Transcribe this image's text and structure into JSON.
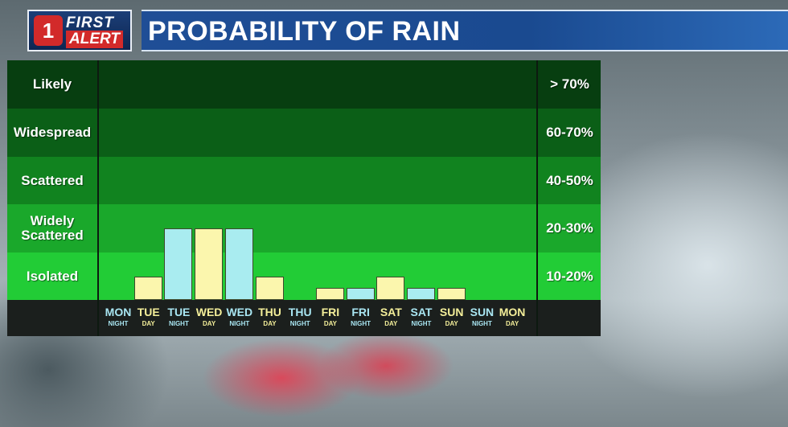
{
  "header": {
    "logo_first": "FIRST",
    "logo_alert": "ALERT",
    "logo_mark": "1",
    "title": "PROBABILITY OF RAIN"
  },
  "colors": {
    "day_bar": "#fbf6ad",
    "night_bar": "#a9ecf0",
    "day_text": "#f4ef9a",
    "night_text": "#a9e6f2",
    "band_likely": "#073e10",
    "band_widespread": "#0b5f17",
    "band_scattered": "#11831f",
    "band_widely_scattered": "#1aa82b",
    "band_isolated": "#22cc36"
  },
  "chart_data": {
    "type": "bar",
    "title": "PROBABILITY OF RAIN",
    "ylabel": "",
    "categories": [
      {
        "day": "MON",
        "part": "NIGHT"
      },
      {
        "day": "TUE",
        "part": "DAY"
      },
      {
        "day": "TUE",
        "part": "NIGHT"
      },
      {
        "day": "WED",
        "part": "DAY"
      },
      {
        "day": "WED",
        "part": "NIGHT"
      },
      {
        "day": "THU",
        "part": "DAY"
      },
      {
        "day": "THU",
        "part": "NIGHT"
      },
      {
        "day": "FRI",
        "part": "DAY"
      },
      {
        "day": "FRI",
        "part": "NIGHT"
      },
      {
        "day": "SAT",
        "part": "DAY"
      },
      {
        "day": "SAT",
        "part": "NIGHT"
      },
      {
        "day": "SUN",
        "part": "DAY"
      },
      {
        "day": "SUN",
        "part": "NIGHT"
      },
      {
        "day": "MON",
        "part": "DAY"
      }
    ],
    "values": [
      0,
      10,
      30,
      30,
      30,
      10,
      0,
      5,
      5,
      10,
      5,
      5,
      0,
      0
    ],
    "ylim": [
      0,
      80
    ],
    "bands": [
      {
        "label": "Likely",
        "range": "> 70%",
        "from": 70,
        "to": 80
      },
      {
        "label": "Widespread",
        "range": "60-70%",
        "from": 60,
        "to": 70
      },
      {
        "label": "Scattered",
        "range": "40-50%",
        "from": 40,
        "to": 60
      },
      {
        "label": "Widely Scattered",
        "range": "20-30%",
        "from": 20,
        "to": 40
      },
      {
        "label": "Isolated",
        "range": "10-20%",
        "from": 0,
        "to": 20
      }
    ]
  }
}
